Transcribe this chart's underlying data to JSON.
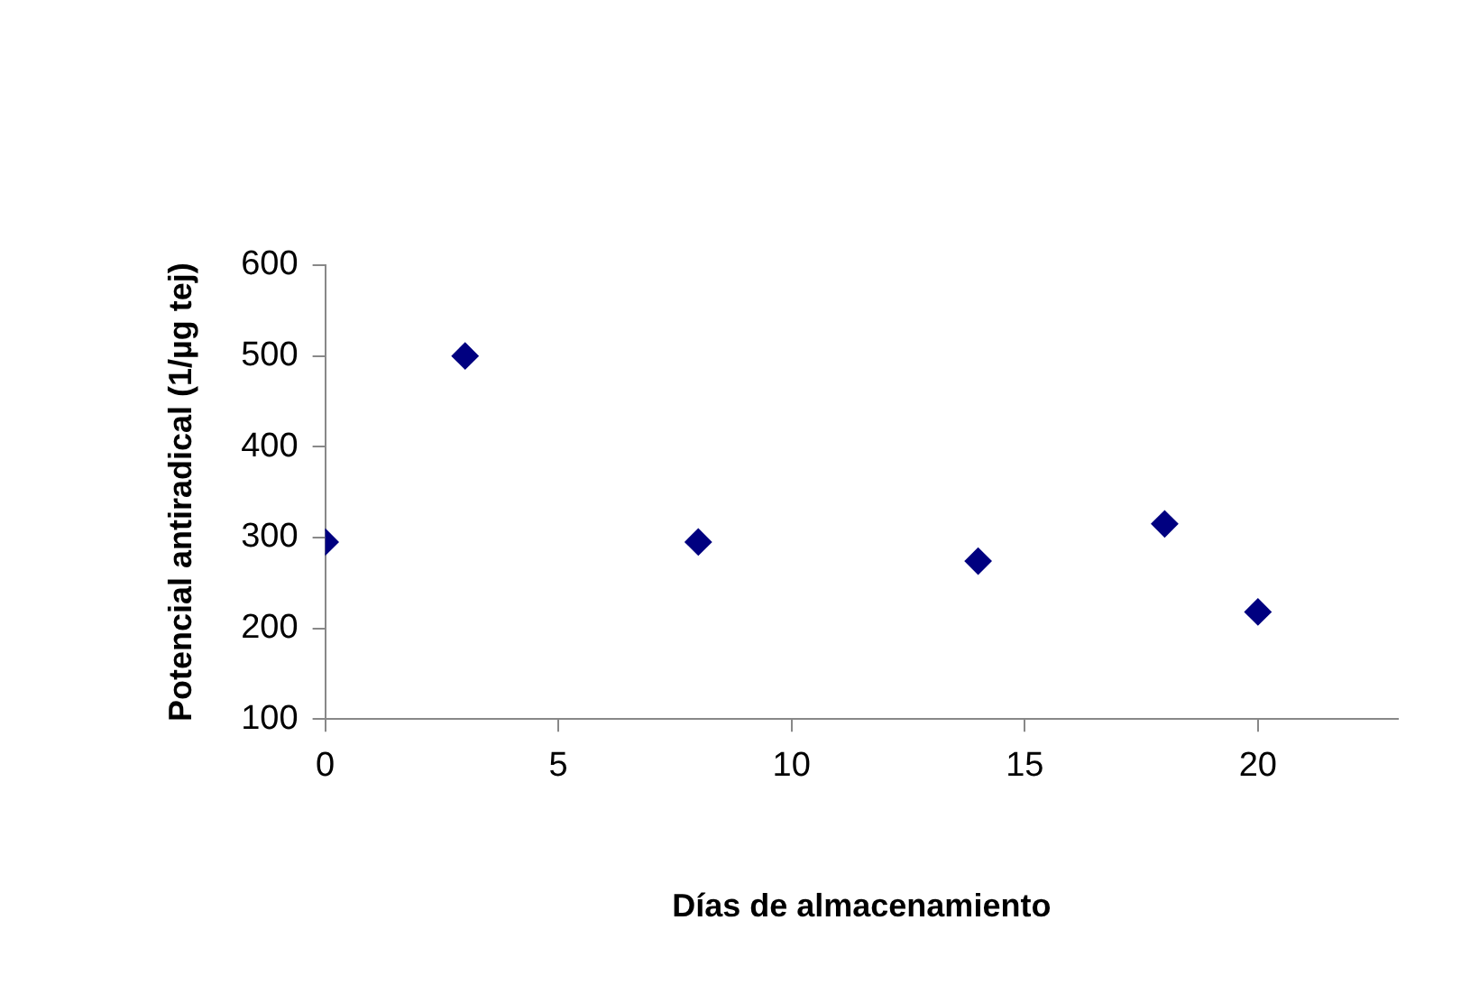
{
  "chart_data": {
    "type": "scatter",
    "xlabel": "Días de almacenamiento",
    "ylabel": "Potencial antiradical (1/µg tej)",
    "x": [
      0,
      3,
      8,
      14,
      18,
      20
    ],
    "series": [
      {
        "color": "#000080",
        "values": [
          295,
          500,
          295,
          274,
          315,
          218
        ]
      }
    ],
    "xlim": [
      0,
      23
    ],
    "xticks": [
      0,
      5,
      10,
      15,
      20
    ],
    "ylim": [
      100,
      600
    ],
    "yticks": [
      100,
      200,
      300,
      400,
      500,
      600
    ],
    "grid": false,
    "legend": false,
    "marker": "diamond"
  }
}
